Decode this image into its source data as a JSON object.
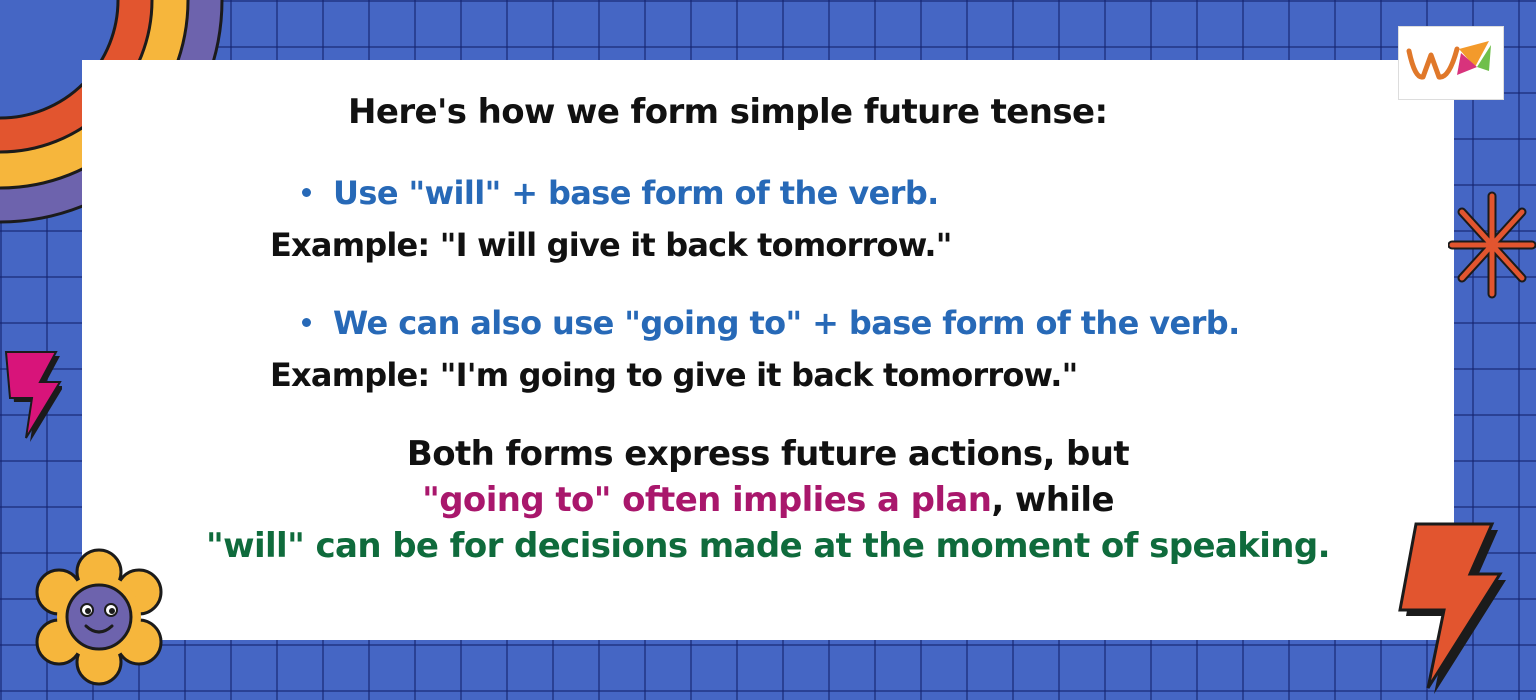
{
  "title": "Here's how we form simple future tense:",
  "rules": [
    {
      "bullet": "Use \"will\" + base form of the verb.",
      "example": "Example: \"I will give it back tomorrow.\""
    },
    {
      "bullet": "We can also use \"going to\" + base form of the verb.",
      "example": "Example: \"I'm going to give it back tomorrow.\""
    }
  ],
  "summary": {
    "line1": "Both forms express future actions, but",
    "line2_highlight": "\"going to\" often implies a plan",
    "line2_rest": ", while",
    "line3": "\"will\" can be for decisions made at the moment of speaking."
  },
  "colors": {
    "background": "#4566c4",
    "bullet_text": "#2769b7",
    "highlight_pink": "#a9176c",
    "highlight_green": "#0f6b3c"
  },
  "icons": [
    "rainbow-icon",
    "lightning-bolt-icon",
    "starburst-icon",
    "flower-face-icon",
    "logo-icon"
  ]
}
